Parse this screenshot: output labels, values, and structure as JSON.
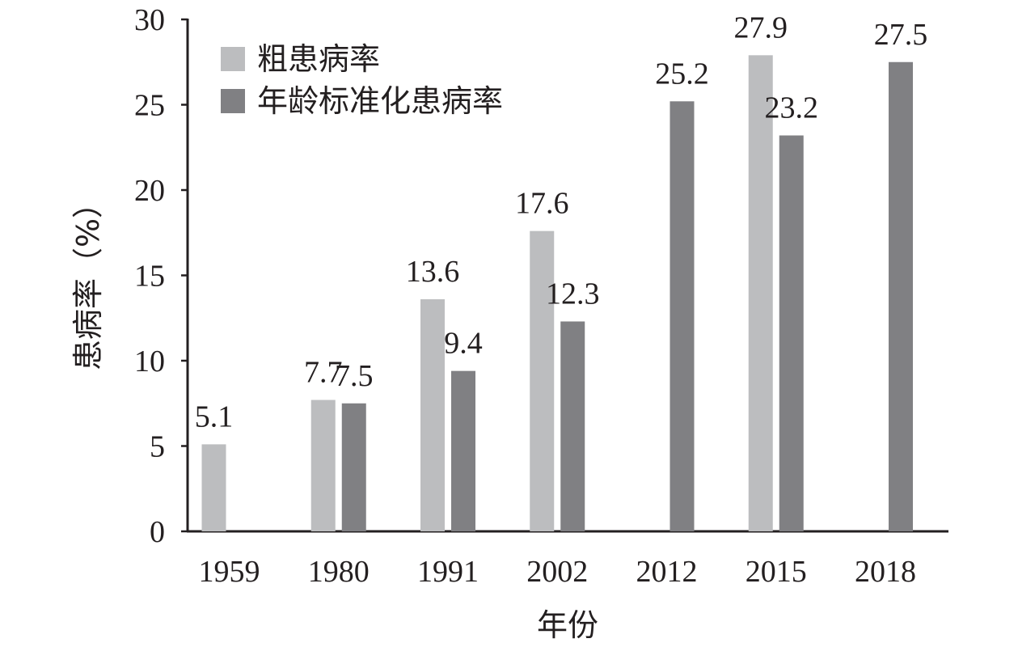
{
  "chart_data": {
    "type": "bar",
    "categories": [
      "1959",
      "1980",
      "1991",
      "2002",
      "2012",
      "2015",
      "2018"
    ],
    "series": [
      {
        "name": "粗患病率",
        "color": "#bcbdbf",
        "values": [
          5.1,
          7.7,
          13.6,
          17.6,
          null,
          27.9,
          null
        ],
        "labels": [
          "5.1",
          "7.7",
          "13.6",
          "17.6",
          "",
          "27.9",
          ""
        ]
      },
      {
        "name": "年龄标准化患病率",
        "color": "#808083",
        "values": [
          null,
          7.5,
          9.4,
          12.3,
          25.2,
          23.2,
          27.5
        ],
        "labels": [
          "",
          "7.5",
          "9.4",
          "12.3",
          "25.2",
          "23.2",
          "27.5"
        ]
      }
    ],
    "title": "",
    "xlabel": "年份",
    "ylabel": "患病率（%）",
    "ylim": [
      0,
      30
    ],
    "yticks": [
      "0",
      "5",
      "10",
      "15",
      "20",
      "25",
      "30"
    ],
    "grid": false,
    "legend_position": "top-left"
  }
}
